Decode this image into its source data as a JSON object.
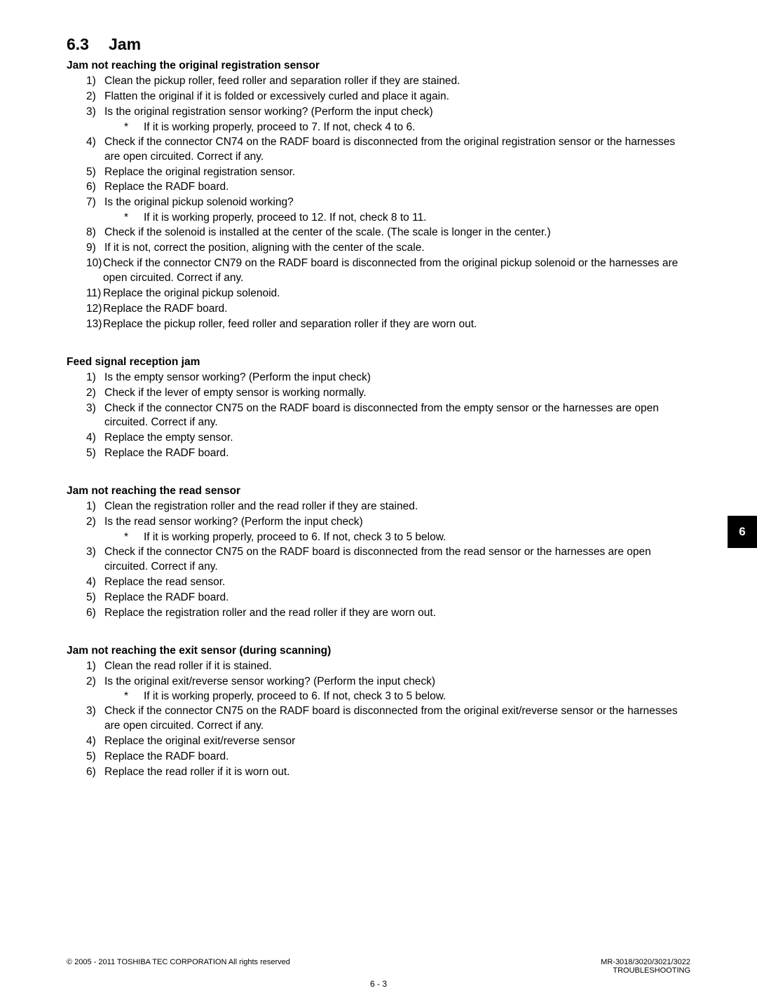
{
  "section": {
    "number": "6.3",
    "title": "Jam"
  },
  "blocks": [
    {
      "heading": "Jam not reaching the original registration sensor",
      "steps": [
        {
          "n": "1)",
          "text": "Clean the pickup roller, feed roller and separation roller if they are stained."
        },
        {
          "n": "2)",
          "text": "Flatten the original if it is folded or excessively curled and place it again."
        },
        {
          "n": "3)",
          "text": "Is the original registration sensor working? (Perform the input check)",
          "note": "If it is working properly, proceed to 7. If not, check 4 to 6."
        },
        {
          "n": "4)",
          "text": "Check if the connector CN74 on the RADF board is disconnected from the original registration sensor or the harnesses are open circuited. Correct if any."
        },
        {
          "n": "5)",
          "text": "Replace the original registration sensor."
        },
        {
          "n": "6)",
          "text": "Replace the RADF board."
        },
        {
          "n": "7)",
          "text": "Is the original pickup solenoid working?",
          "note": "If it is working properly, proceed to 12. If not, check 8 to 11."
        },
        {
          "n": "8)",
          "text": "Check if the solenoid is installed at the center of the scale. (The scale is longer in the center.)"
        },
        {
          "n": "9)",
          "text": "If it is not, correct the position, aligning with the center of the scale."
        },
        {
          "n": "10)",
          "text": "Check if the connector CN79 on the RADF board is disconnected from the original pickup solenoid or the harnesses are open circuited. Correct if any.",
          "tight": true
        },
        {
          "n": "11)",
          "text": "Replace the original pickup solenoid.",
          "tight": true
        },
        {
          "n": "12)",
          "text": "Replace the RADF board.",
          "tight": true
        },
        {
          "n": "13)",
          "text": "Replace the pickup roller, feed roller and separation roller if they are worn out.",
          "tight": true
        }
      ]
    },
    {
      "heading": "Feed signal reception jam",
      "steps": [
        {
          "n": "1)",
          "text": "Is the empty sensor working? (Perform the input check)"
        },
        {
          "n": "2)",
          "text": "Check if the lever of empty sensor is working normally."
        },
        {
          "n": "3)",
          "text": "Check if the connector CN75 on the RADF board is disconnected from the empty sensor or the harnesses are open circuited. Correct if any."
        },
        {
          "n": "4)",
          "text": "Replace the empty sensor."
        },
        {
          "n": "5)",
          "text": "Replace the RADF board."
        }
      ]
    },
    {
      "heading": "Jam not reaching the read sensor",
      "steps": [
        {
          "n": "1)",
          "text": "Clean the registration roller and the read roller if they are stained."
        },
        {
          "n": "2)",
          "text": "Is the read sensor working? (Perform the input check)",
          "note": "If it is working properly, proceed to 6. If not, check 3 to 5 below."
        },
        {
          "n": "3)",
          "text": "Check if the connector CN75 on the RADF board is disconnected from the read sensor or the harnesses are open circuited. Correct if any."
        },
        {
          "n": "4)",
          "text": "Replace the read sensor."
        },
        {
          "n": "5)",
          "text": "Replace the RADF board."
        },
        {
          "n": "6)",
          "text": "Replace the registration roller and the read roller if they are worn out."
        }
      ]
    },
    {
      "heading": "Jam not reaching the exit sensor (during scanning)",
      "steps": [
        {
          "n": "1)",
          "text": "Clean the read roller if it is stained."
        },
        {
          "n": "2)",
          "text": "Is the original exit/reverse sensor working? (Perform the input check)",
          "note": "If it is working properly, proceed to 6. If not, check 3 to 5 below."
        },
        {
          "n": "3)",
          "text": "Check if the connector CN75 on the RADF board is disconnected from the original exit/reverse sensor or the harnesses are open circuited. Correct if any."
        },
        {
          "n": "4)",
          "text": "Replace the original exit/reverse sensor"
        },
        {
          "n": "5)",
          "text": "Replace the RADF board."
        },
        {
          "n": "6)",
          "text": "Replace the read roller if it is worn out."
        }
      ]
    }
  ],
  "tab": "6",
  "footer": {
    "left": "© 2005 - 2011 TOSHIBA TEC CORPORATION All rights reserved",
    "right1": "MR-3018/3020/3021/3022",
    "right2": "TROUBLESHOOTING",
    "pagenum": "6 - 3"
  }
}
